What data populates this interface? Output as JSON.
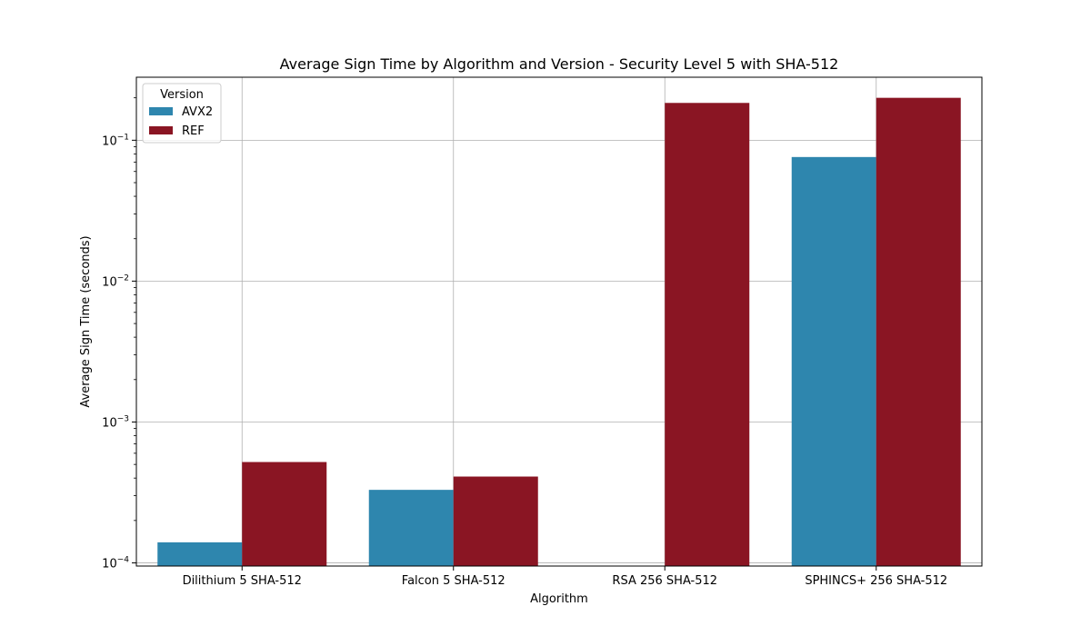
{
  "chart_data": {
    "type": "bar",
    "title": "Average Sign Time by Algorithm and Version - Security Level 5 with SHA-512",
    "xlabel": "Algorithm",
    "ylabel": "Average Sign Time (seconds)",
    "yscale": "log",
    "ylim": [
      9.5e-05,
      0.28
    ],
    "grid": true,
    "legend": {
      "title": "Version",
      "position": "top-left"
    },
    "categories": [
      "Dilithium 5 SHA-512",
      "Falcon 5 SHA-512",
      "RSA 256 SHA-512",
      "SPHINCS+ 256 SHA-512"
    ],
    "y_ticks": [
      {
        "value": 0.0001,
        "base": "10",
        "exp": "−4"
      },
      {
        "value": 0.001,
        "base": "10",
        "exp": "−3"
      },
      {
        "value": 0.01,
        "base": "10",
        "exp": "−2"
      },
      {
        "value": 0.1,
        "base": "10",
        "exp": "−1"
      }
    ],
    "series": [
      {
        "name": "AVX2",
        "color": "#2e86ae",
        "values": [
          0.00014,
          0.00033,
          null,
          0.076
        ]
      },
      {
        "name": "REF",
        "color": "#8a1523",
        "values": [
          0.00052,
          0.00041,
          0.184,
          0.2
        ]
      }
    ]
  }
}
